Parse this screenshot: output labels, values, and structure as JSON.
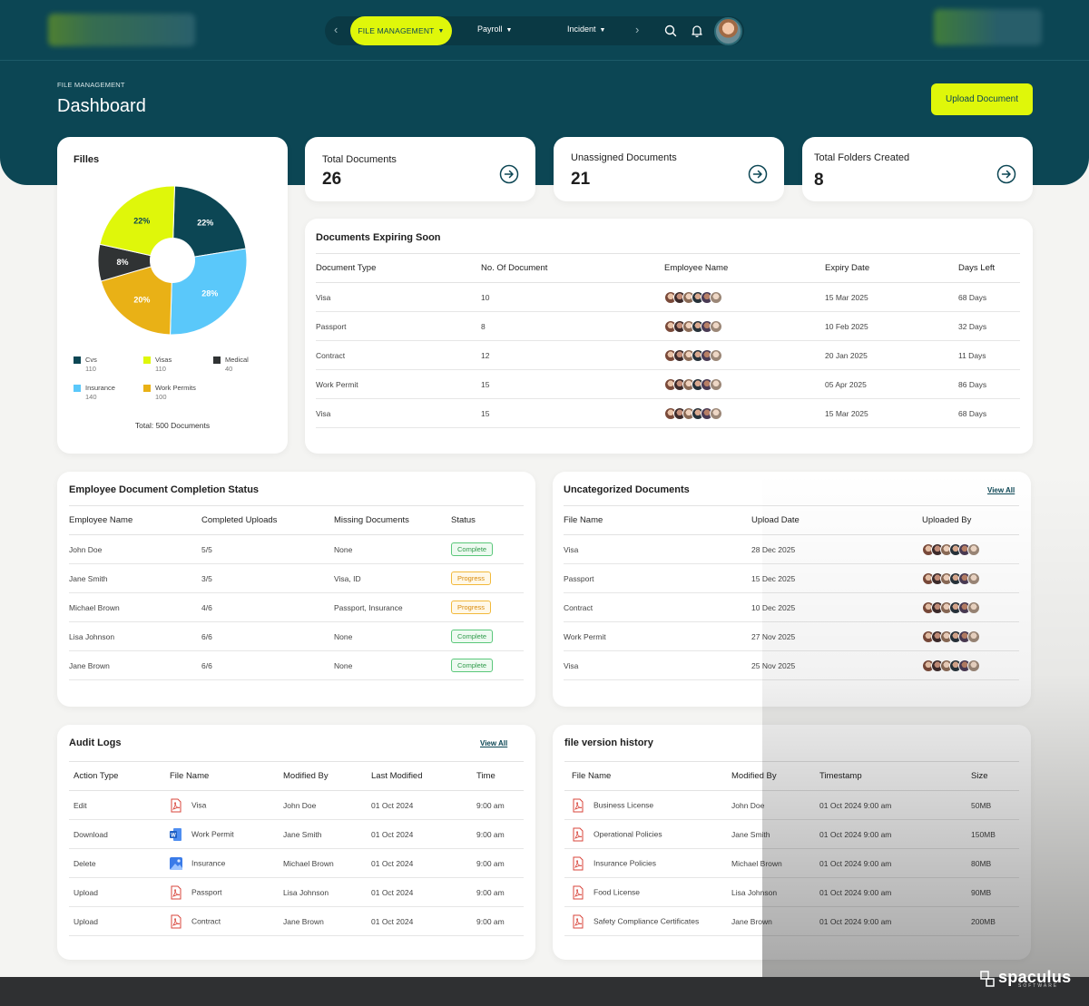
{
  "nav": {
    "active": "FILE MANAGEMENT",
    "items": [
      "Payroll",
      "Incident"
    ],
    "prev": "‹",
    "next": "›"
  },
  "page": {
    "breadcrumb": "FILE MANAGEMENT",
    "title": "Dashboard",
    "upload_label": "Upload Document"
  },
  "files_card": {
    "title": "Filles",
    "total": "Total: 500 Documents"
  },
  "chart_data": {
    "type": "pie",
    "title": "Filles",
    "categories": [
      "Cvs",
      "Visas",
      "Medical",
      "Insurance",
      "Work Permits"
    ],
    "values": [
      110,
      110,
      40,
      140,
      100
    ],
    "percent_labels": [
      "22%",
      "22%",
      "8%",
      "28%",
      "20%"
    ],
    "colors": [
      "#0c4654",
      "#dff70a",
      "#303334",
      "#5ac8fa",
      "#e9b116"
    ],
    "legend": [
      {
        "name": "Cvs",
        "value": "110"
      },
      {
        "name": "Visas",
        "value": "110"
      },
      {
        "name": "Medical",
        "value": "40"
      },
      {
        "name": "Insurance",
        "value": "140"
      },
      {
        "name": "Work Permits",
        "value": "100"
      }
    ]
  },
  "stats": [
    {
      "label": "Total Documents",
      "value": "26"
    },
    {
      "label": "Unassigned Documents",
      "value": "21"
    },
    {
      "label": "Total Folders Created",
      "value": "8"
    }
  ],
  "expiring": {
    "title": "Documents Expiring Soon",
    "headers": [
      "Document Type",
      "No. Of Document",
      "Employee Name",
      "Expiry Date",
      "Days Left"
    ],
    "rows": [
      {
        "type": "Visa",
        "count": "10",
        "expiry": "15 Mar 2025",
        "days": "68 Days"
      },
      {
        "type": "Passport",
        "count": "8",
        "expiry": "10 Feb 2025",
        "days": "32 Days"
      },
      {
        "type": "Contract",
        "count": "12",
        "expiry": "20 Jan 2025",
        "days": "11 Days"
      },
      {
        "type": "Work Permit",
        "count": "15",
        "expiry": "05 Apr 2025",
        "days": "86 Days"
      },
      {
        "type": "Visa",
        "count": "15",
        "expiry": "15 Mar 2025",
        "days": "68 Days"
      }
    ]
  },
  "completion": {
    "title": "Employee Document Completion Status",
    "headers": [
      "Employee Name",
      "Completed Uploads",
      "Missing Documents",
      "Status"
    ],
    "rows": [
      {
        "name": "John Doe",
        "uploads": "5/5",
        "missing": "None",
        "status": "Complete"
      },
      {
        "name": "Jane Smith",
        "uploads": "3/5",
        "missing": "Visa, ID",
        "status": "Progress"
      },
      {
        "name": "Michael Brown",
        "uploads": "4/6",
        "missing": "Passport, Insurance",
        "status": "Progress"
      },
      {
        "name": "Lisa Johnson",
        "uploads": "6/6",
        "missing": "None",
        "status": "Complete"
      },
      {
        "name": "Jane Brown",
        "uploads": "6/6",
        "missing": "None",
        "status": "Complete"
      }
    ]
  },
  "uncategorized": {
    "title": "Uncategorized Documents",
    "view_all": "View All",
    "headers": [
      "File Name",
      "Upload Date",
      "Uploaded By"
    ],
    "rows": [
      {
        "name": "Visa",
        "date": "28 Dec 2025"
      },
      {
        "name": "Passport",
        "date": "15 Dec 2025"
      },
      {
        "name": "Contract",
        "date": "10 Dec 2025"
      },
      {
        "name": "Work Permit",
        "date": "27 Nov 2025"
      },
      {
        "name": "Visa",
        "date": "25 Nov 2025"
      }
    ]
  },
  "audit": {
    "title": "Audit Logs",
    "view_all": "View All",
    "headers": [
      "Action Type",
      "File Name",
      "Modified By",
      "Last Modified",
      "Time"
    ],
    "rows": [
      {
        "action": "Edit",
        "icon": "pdf-icon",
        "file": "Visa",
        "by": "John Doe",
        "date": "01 Oct 2024",
        "time": "9:00 am"
      },
      {
        "action": "Download",
        "icon": "word-icon",
        "file": "Work Permit",
        "by": "Jane Smith",
        "date": "01 Oct 2024",
        "time": "9:00 am"
      },
      {
        "action": "Delete",
        "icon": "image-icon",
        "file": "Insurance",
        "by": "Michael Brown",
        "date": "01 Oct 2024",
        "time": "9:00 am"
      },
      {
        "action": "Upload",
        "icon": "pdf-icon",
        "file": "Passport",
        "by": "Lisa Johnson",
        "date": "01 Oct 2024",
        "time": "9:00 am"
      },
      {
        "action": "Upload",
        "icon": "pdf-icon",
        "file": "Contract",
        "by": "Jane Brown",
        "date": "01 Oct 2024",
        "time": "9:00 am"
      }
    ]
  },
  "versions": {
    "title": "file version history",
    "headers": [
      "File Name",
      "Modified By",
      "Timestamp",
      "Size"
    ],
    "rows": [
      {
        "file": "Business License",
        "by": "John Doe",
        "ts": "01 Oct 2024  9:00 am",
        "size": "50MB"
      },
      {
        "file": "Operational Policies",
        "by": "Jane Smith",
        "ts": "01 Oct 2024  9:00 am",
        "size": "150MB"
      },
      {
        "file": "Insurance Policies",
        "by": "Michael Brown",
        "ts": "01 Oct 2024  9:00 am",
        "size": "80MB"
      },
      {
        "file": "Food License",
        "by": "Lisa Johnson",
        "ts": "01 Oct 2024  9:00 am",
        "size": "90MB"
      },
      {
        "file": "Safety Compliance Certificates",
        "by": "Jane Brown",
        "ts": "01 Oct 2024  9:00 am",
        "size": "200MB"
      }
    ]
  },
  "brand": {
    "name": "spaculus",
    "sub": "SOFTWARE"
  }
}
